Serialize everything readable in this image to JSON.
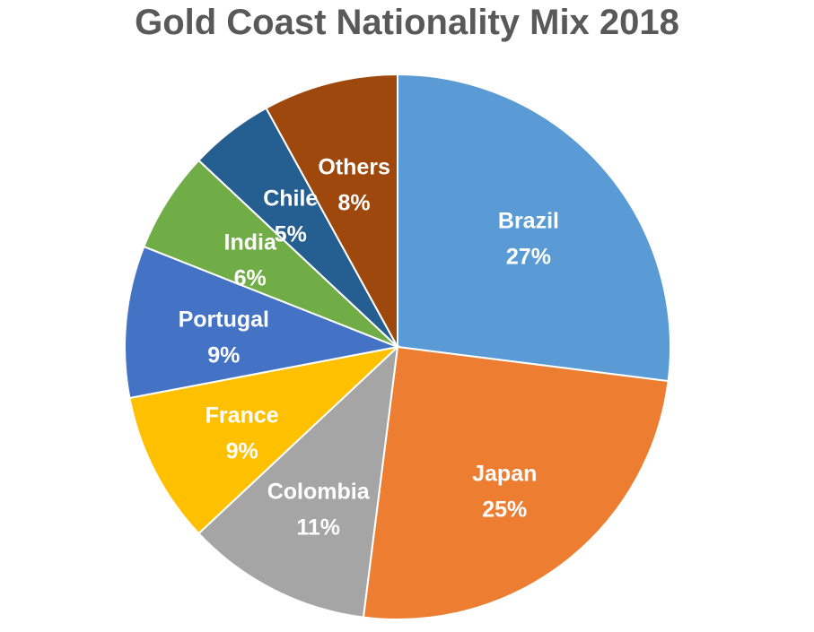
{
  "chart_data": {
    "type": "pie",
    "title": "Gold Coast Nationality Mix 2018",
    "slices": [
      {
        "label": "Brazil",
        "value": 27,
        "display": "27%",
        "color": "#5B9BD5"
      },
      {
        "label": "Japan",
        "value": 25,
        "display": "25%",
        "color": "#ED7D31"
      },
      {
        "label": "Colombia",
        "value": 11,
        "display": "11%",
        "color": "#A5A5A5"
      },
      {
        "label": "France",
        "value": 9,
        "display": "9%",
        "color": "#FFC000"
      },
      {
        "label": "Portugal",
        "value": 9,
        "display": "9%",
        "color": "#4472C4"
      },
      {
        "label": "India",
        "value": 6,
        "display": "6%",
        "color": "#70AD47"
      },
      {
        "label": "Chile",
        "value": 5,
        "display": "5%",
        "color": "#255E91"
      },
      {
        "label": "Others",
        "value": 8,
        "display": "8%",
        "color": "#9E480E"
      }
    ]
  }
}
